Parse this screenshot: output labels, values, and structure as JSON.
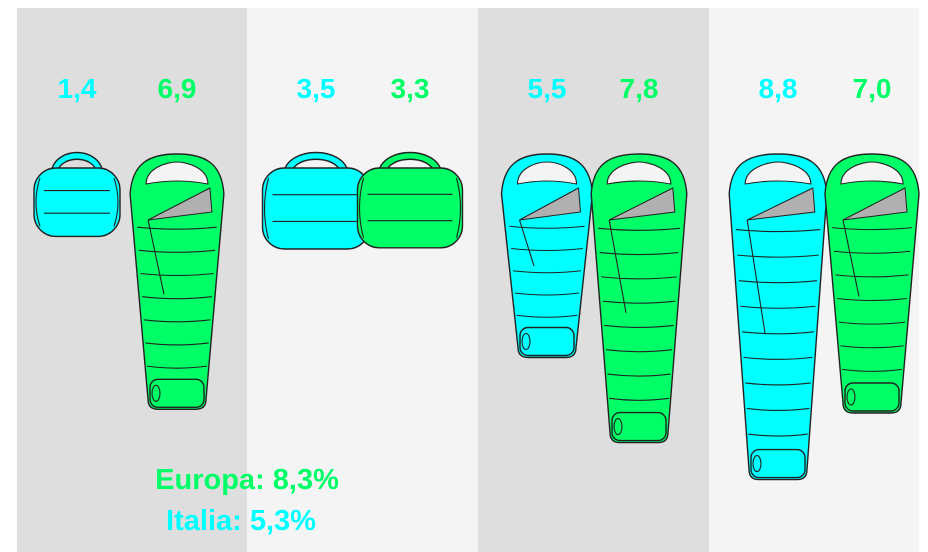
{
  "chart_data": {
    "type": "bar",
    "categories": [
      "",
      "",
      "",
      ""
    ],
    "series": [
      {
        "name": "Italia",
        "color": "#00ffff",
        "values": [
          1.4,
          3.5,
          5.5,
          8.8
        ]
      },
      {
        "name": "Europa",
        "color": "#00ff66",
        "values": [
          6.9,
          3.3,
          7.8,
          7.0
        ]
      }
    ],
    "value_labels": {
      "Italia": [
        "1,4",
        "3,5",
        "5,5",
        "8,8"
      ],
      "Europa": [
        "6,9",
        "3,3",
        "7,8",
        "7,0"
      ]
    },
    "legend": [
      {
        "series": "Europa",
        "text": "Europa: 8,3%",
        "color": "#00ff66"
      },
      {
        "series": "Italia",
        "text": "Italia: 5,3%",
        "color": "#00ffff"
      }
    ],
    "marks": "sleeping-bag-icon",
    "column_backgrounds": [
      "#dedede",
      "#f4f4f4",
      "#dedede",
      "#f4f4f4"
    ]
  }
}
